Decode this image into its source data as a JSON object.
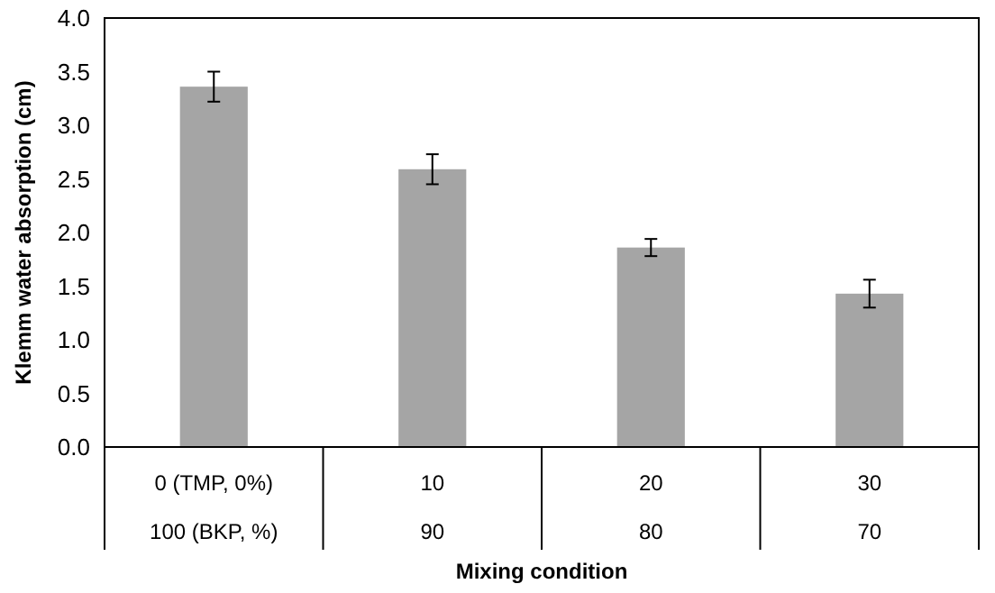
{
  "chart_data": {
    "type": "bar",
    "xlabel": "Mixing condition",
    "ylabel": "Klemm water absorption (cm)",
    "categories": [
      "0 (TMP, 0%)\n100 (BKP, %)",
      "10\n90",
      "20\n80",
      "30\n70"
    ],
    "values": [
      3.36,
      2.59,
      1.86,
      1.43
    ],
    "errors": [
      0.14,
      0.14,
      0.08,
      0.13
    ],
    "color": "#a5a5a5",
    "ylim": [
      0,
      4
    ],
    "yticks": [
      {
        "value": 0,
        "label": "0.0"
      },
      {
        "value": 0.5,
        "label": "0.5"
      },
      {
        "value": 1,
        "label": "1.0"
      },
      {
        "value": 1.5,
        "label": "1.5"
      },
      {
        "value": 2,
        "label": "2.0"
      },
      {
        "value": 2.5,
        "label": "2.5"
      },
      {
        "value": 3,
        "label": "3.0"
      },
      {
        "value": 3.5,
        "label": "3.5"
      },
      {
        "value": 4,
        "label": "4.0"
      }
    ],
    "grid": false
  }
}
